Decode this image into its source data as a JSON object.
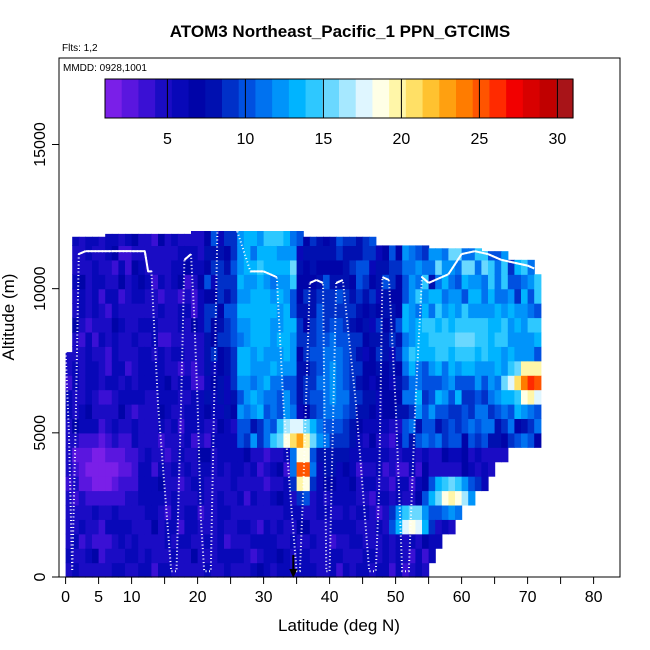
{
  "chart_data": {
    "type": "heatmap",
    "title": "ATOM3 Northeast_Pacific_1 PPN_GTCIMS",
    "subtitle_flights": "Flts: 1,2",
    "subtitle_dates": "MMDD: 0928,1001",
    "xlabel": "Latitude (deg N)",
    "ylabel": "Altitude (m)",
    "xlim": [
      -1,
      84
    ],
    "ylim": [
      0,
      18000
    ],
    "x_ticks_minor": [
      0,
      5,
      10,
      15,
      20,
      25,
      30,
      35,
      40,
      45,
      50,
      55,
      60,
      65,
      70,
      75,
      80
    ],
    "x_tick_labels": [
      "0",
      "5",
      "10",
      "20",
      "30",
      "40",
      "50",
      "60",
      "70",
      "80"
    ],
    "x_tick_label_values": [
      0,
      5,
      10,
      20,
      30,
      40,
      50,
      60,
      70,
      80
    ],
    "y_ticks": [
      0,
      5000,
      10000,
      15000
    ],
    "y_tick_labels": [
      "0",
      "5000",
      "10000",
      "15000"
    ],
    "colorbar": {
      "range": [
        1,
        31
      ],
      "tick_values": [
        5,
        10,
        15,
        20,
        25,
        30
      ],
      "tick_labels": [
        "5",
        "10",
        "15",
        "20",
        "25",
        "30"
      ],
      "colors": [
        "#7a1fe8",
        "#5a16df",
        "#3a10d4",
        "#1a0cc4",
        "#0808b8",
        "#0004a8",
        "#0010b0",
        "#0030c8",
        "#0050e0",
        "#0072f0",
        "#0094fa",
        "#00b4ff",
        "#2ec8ff",
        "#6ad8ff",
        "#a6e8ff",
        "#dff6ff",
        "#ffffe6",
        "#fff6a8",
        "#ffe066",
        "#ffc230",
        "#ffa010",
        "#ff7c00",
        "#ff5400",
        "#ff2a00",
        "#f20000",
        "#d80000",
        "#c00000",
        "#a81418"
      ]
    },
    "grid": {
      "lat_start": 0,
      "lat_step": 1,
      "lat_count": 72,
      "alt_start": 0,
      "alt_step": 500,
      "alt_count": 26,
      "envelope_top_m": [
        7800,
        11800,
        11800,
        11800,
        11800,
        11800,
        11900,
        11900,
        11900,
        11900,
        11900,
        11900,
        11900,
        11900,
        11900,
        11900,
        11900,
        11900,
        11900,
        12000,
        12000,
        12000,
        12000,
        12000,
        12000,
        12000,
        12000,
        12000,
        12000,
        12000,
        12000,
        12000,
        12000,
        12000,
        12000,
        12000,
        11800,
        11800,
        11800,
        11800,
        11800,
        11800,
        11800,
        11800,
        11800,
        11800,
        11800,
        11600,
        11600,
        11600,
        11600,
        11600,
        11600,
        11600,
        11600,
        11400,
        11400,
        11400,
        11400,
        11400,
        11400,
        11400,
        11400,
        11300,
        11300,
        11300,
        11300,
        11200,
        11200,
        11200,
        11100,
        10600
      ],
      "envelope_bottom_m": [
        0,
        0,
        0,
        0,
        0,
        0,
        0,
        0,
        0,
        0,
        0,
        0,
        0,
        0,
        0,
        0,
        0,
        0,
        0,
        0,
        0,
        0,
        0,
        0,
        0,
        0,
        0,
        0,
        0,
        0,
        0,
        0,
        0,
        0,
        0,
        0,
        0,
        0,
        0,
        0,
        0,
        0,
        0,
        0,
        0,
        0,
        0,
        0,
        0,
        0,
        0,
        0,
        0,
        0,
        0,
        300,
        700,
        1100,
        1500,
        1800,
        2100,
        2400,
        2700,
        3000,
        3300,
        3600,
        3900,
        4200,
        4400,
        4400,
        4400,
        4400
      ],
      "hotspots": [
        {
          "lat": 35,
          "alt": 4700,
          "value": 25,
          "radius_deg": 3.5,
          "radius_m": 500
        },
        {
          "lat": 35.5,
          "alt": 3500,
          "value": 28,
          "radius_deg": 1.5,
          "radius_m": 900
        },
        {
          "lat": 70,
          "alt": 6500,
          "value": 26,
          "radius_deg": 3.5,
          "radius_m": 700
        },
        {
          "lat": 52,
          "alt": 1700,
          "value": 22,
          "radius_deg": 3,
          "radius_m": 500
        },
        {
          "lat": 58,
          "alt": 2600,
          "value": 20,
          "radius_deg": 4,
          "radius_m": 700
        },
        {
          "lat": 60,
          "alt": 8000,
          "value": 15,
          "radius_deg": 9,
          "radius_m": 1200
        },
        {
          "lat": 29,
          "alt": 8500,
          "value": 13,
          "radius_deg": 5,
          "radius_m": 2500
        },
        {
          "lat": 40,
          "alt": 6500,
          "value": 12,
          "radius_deg": 4,
          "radius_m": 3000
        },
        {
          "lat": 5,
          "alt": 3500,
          "value": 1,
          "radius_deg": 5,
          "radius_m": 1200
        }
      ]
    },
    "flight_track": {
      "lat": [
        0,
        0.5,
        1,
        1.5,
        2,
        3,
        5,
        7,
        10,
        12,
        12.5,
        13,
        14,
        16,
        16.8,
        17.5,
        18,
        19,
        19.5,
        20,
        20.5,
        21,
        22,
        22.5,
        23,
        24,
        25,
        26,
        28,
        30,
        32,
        33,
        34,
        35,
        35.5,
        36,
        37,
        38,
        39,
        39.5,
        40,
        41,
        42,
        44,
        46,
        47,
        47.5,
        48,
        49,
        50,
        51,
        52,
        53,
        54,
        55,
        56,
        57,
        58,
        60,
        62,
        64,
        66,
        68,
        70,
        71
      ],
      "alt": [
        7800,
        5000,
        200,
        5000,
        11200,
        11300,
        11300,
        11300,
        11300,
        11300,
        10600,
        10600,
        6000,
        200,
        200,
        6000,
        11000,
        11200,
        9000,
        6000,
        2000,
        200,
        200,
        6000,
        12000,
        12500,
        12300,
        12000,
        10600,
        10600,
        10400,
        6000,
        3000,
        200,
        200,
        3000,
        10200,
        10300,
        10200,
        200,
        200,
        10200,
        10300,
        6000,
        200,
        200,
        3000,
        10400,
        10300,
        6000,
        200,
        200,
        6000,
        10400,
        10200,
        10300,
        10400,
        10500,
        11200,
        11300,
        11200,
        11000,
        10900,
        10800,
        10700
      ]
    },
    "marker_lat": 34.5
  }
}
